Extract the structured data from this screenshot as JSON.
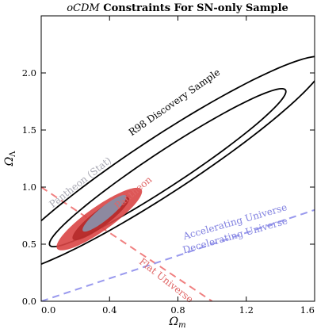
{
  "chart_data": {
    "type": "contour",
    "title": "oCDM Constraints For SN-only Sample",
    "title_italic_part": "oCDM",
    "title_rest": " Constraints For SN-only Sample",
    "xlabel": "Ω",
    "xlabel_sub": "m",
    "ylabel": "Ω",
    "ylabel_sub": "Λ",
    "xlim": [
      0.0,
      1.6
    ],
    "ylim": [
      0.0,
      2.5
    ],
    "x_ticks": [
      0.0,
      0.4,
      0.8,
      1.2,
      1.6
    ],
    "y_ticks": [
      0.0,
      0.5,
      1.0,
      1.5,
      2.0
    ],
    "x_tick_labels": [
      "0.0",
      "0.4",
      "0.8",
      "1.2",
      "1.6"
    ],
    "y_tick_labels": [
      "0.0",
      "0.5",
      "1.0",
      "1.5",
      "2.0"
    ],
    "series": [
      {
        "name": "R98 Discovery Sample",
        "style": "outline",
        "color": "#000000",
        "contours": [
          {
            "level": "1σ",
            "center": [
              0.74,
              1.17
            ],
            "semi_major": 0.97,
            "semi_minor": 0.13,
            "angle_deg": 45
          },
          {
            "level": "2σ",
            "center": [
              0.72,
              1.2
            ],
            "semi_major": 1.32,
            "semi_minor": 0.21,
            "angle_deg": 45
          }
        ]
      },
      {
        "name": "Pantheon",
        "style": "filled",
        "color": "#d9534f",
        "contours": [
          {
            "level": "2σ",
            "center": [
              0.34,
              0.72
            ],
            "semi_major": 0.36,
            "semi_minor": 0.09,
            "angle_deg": 48
          },
          {
            "level": "1σ",
            "center": [
              0.35,
              0.73
            ],
            "semi_major": 0.25,
            "semi_minor": 0.06,
            "angle_deg": 50
          }
        ]
      },
      {
        "name": "Pantheon (Stat)",
        "style": "filled",
        "color": "#8c8fa6",
        "contours": [
          {
            "level": "1σ",
            "center": [
              0.37,
              0.77
            ],
            "semi_major": 0.2,
            "semi_minor": 0.045,
            "angle_deg": 52
          }
        ]
      }
    ],
    "reference_lines": [
      {
        "name": "Flat Universe",
        "points": [
          [
            0.0,
            1.0
          ],
          [
            1.0,
            0.0
          ]
        ],
        "color": "#f08080",
        "dash": true
      },
      {
        "name": "Accelerating Universe / Decelerating Universe",
        "points": [
          [
            0.0,
            0.0
          ],
          [
            1.6,
            0.8
          ]
        ],
        "color": "#9999ee",
        "dash": true
      }
    ],
    "annotations": [
      {
        "text": "R98 Discovery Sample",
        "at": [
          0.79,
          1.72
        ],
        "angle_deg": -35,
        "color": "#000000"
      },
      {
        "text": "Pantheon (Stat)",
        "at": [
          0.24,
          1.02
        ],
        "angle_deg": -38,
        "color": "#a9a9b4"
      },
      {
        "text": "Pantheon",
        "at": [
          0.55,
          0.93
        ],
        "angle_deg": -40,
        "color": "#e06666"
      },
      {
        "text": "Accelerating Universe",
        "at": [
          1.14,
          0.67
        ],
        "angle_deg": -16,
        "color": "#8080e0"
      },
      {
        "text": "Decelerating Universe",
        "at": [
          1.14,
          0.55
        ],
        "angle_deg": -16,
        "color": "#8080e0"
      },
      {
        "text": "Flat Universe",
        "at": [
          0.72,
          0.16
        ],
        "angle_deg": 38,
        "color": "#e06666"
      }
    ]
  }
}
